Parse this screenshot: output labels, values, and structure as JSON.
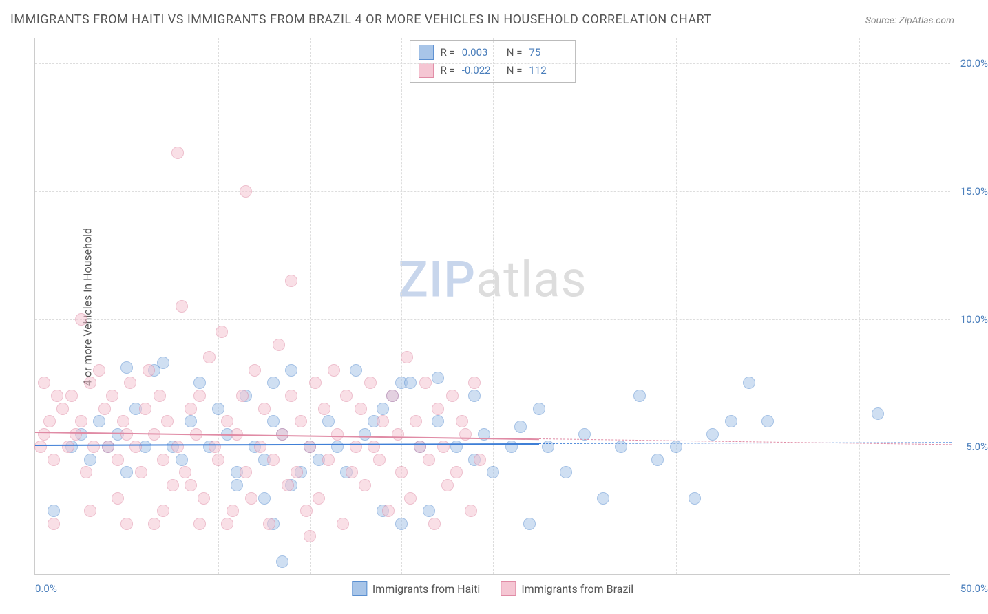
{
  "title": "IMMIGRANTS FROM HAITI VS IMMIGRANTS FROM BRAZIL 4 OR MORE VEHICLES IN HOUSEHOLD CORRELATION CHART",
  "source": "Source: ZipAtlas.com",
  "ylabel": "4 or more Vehicles in Household",
  "watermark_zip": "ZIP",
  "watermark_atlas": "atlas",
  "chart": {
    "type": "scatter",
    "xlim": [
      0,
      50
    ],
    "ylim": [
      0,
      21
    ],
    "yticks": [
      {
        "v": 5.0,
        "label": "5.0%"
      },
      {
        "v": 10.0,
        "label": "10.0%"
      },
      {
        "v": 15.0,
        "label": "15.0%"
      },
      {
        "v": 20.0,
        "label": "20.0%"
      }
    ],
    "xtick_left": "0.0%",
    "xtick_right": "50.0%",
    "vgrid_count": 10,
    "background_color": "#ffffff",
    "grid_color": "#dddddd",
    "label_color": "#4a7ebb",
    "point_radius": 9,
    "point_opacity": 0.55,
    "series": [
      {
        "name": "Immigrants from Haiti",
        "fill": "#a8c5e8",
        "stroke": "#5a8fd0",
        "trend_color": "#3f7fd6",
        "trend_y0": 5.1,
        "trend_y1": 5.2,
        "R_label": "R =",
        "R_value": "0.003",
        "N_label": "N =",
        "N_value": "75",
        "points": [
          [
            1.0,
            2.5
          ],
          [
            2.0,
            5.0
          ],
          [
            2.5,
            5.5
          ],
          [
            3.0,
            4.5
          ],
          [
            3.5,
            6.0
          ],
          [
            4.0,
            5.0
          ],
          [
            4.5,
            5.5
          ],
          [
            5.0,
            4.0
          ],
          [
            5.5,
            6.5
          ],
          [
            6.0,
            5.0
          ],
          [
            6.5,
            8.0
          ],
          [
            7.0,
            8.3
          ],
          [
            7.5,
            5.0
          ],
          [
            8.0,
            4.5
          ],
          [
            5.0,
            8.1
          ],
          [
            8.5,
            6.0
          ],
          [
            9.0,
            7.5
          ],
          [
            9.5,
            5.0
          ],
          [
            10.0,
            6.5
          ],
          [
            10.5,
            5.5
          ],
          [
            11.0,
            4.0
          ],
          [
            11.5,
            7.0
          ],
          [
            12.0,
            5.0
          ],
          [
            12.5,
            4.5
          ],
          [
            13.0,
            6.0
          ],
          [
            13.5,
            0.5
          ],
          [
            11.0,
            3.5
          ],
          [
            12.5,
            3.0
          ],
          [
            13.0,
            2.0
          ],
          [
            13.5,
            5.5
          ],
          [
            14.0,
            3.5
          ],
          [
            14.5,
            4.0
          ],
          [
            15.0,
            5.0
          ],
          [
            15.5,
            4.5
          ],
          [
            16.0,
            6.0
          ],
          [
            16.5,
            5.0
          ],
          [
            17.0,
            4.0
          ],
          [
            18.0,
            5.5
          ],
          [
            19.0,
            6.5
          ],
          [
            19.5,
            7.0
          ],
          [
            20.0,
            7.5
          ],
          [
            21.0,
            5.0
          ],
          [
            22.0,
            6.0
          ],
          [
            23.0,
            5.0
          ],
          [
            24.0,
            4.5
          ],
          [
            24.5,
            5.5
          ],
          [
            25.0,
            4.0
          ],
          [
            26.0,
            5.0
          ],
          [
            27.0,
            2.0
          ],
          [
            27.5,
            6.5
          ],
          [
            28.0,
            5.0
          ],
          [
            29.0,
            4.0
          ],
          [
            30.0,
            5.5
          ],
          [
            31.0,
            3.0
          ],
          [
            32.0,
            5.0
          ],
          [
            33.0,
            7.0
          ],
          [
            34.0,
            4.5
          ],
          [
            35.0,
            5.0
          ],
          [
            36.0,
            3.0
          ],
          [
            37.0,
            5.5
          ],
          [
            38.0,
            6.0
          ],
          [
            39.0,
            7.5
          ],
          [
            40.0,
            6.0
          ],
          [
            19.0,
            2.5
          ],
          [
            20.0,
            2.0
          ],
          [
            21.5,
            2.5
          ],
          [
            20.5,
            7.5
          ],
          [
            17.5,
            8.0
          ],
          [
            18.5,
            6.0
          ],
          [
            46.0,
            6.3
          ],
          [
            14.0,
            8.0
          ],
          [
            13.0,
            7.5
          ],
          [
            22.0,
            7.7
          ],
          [
            24.0,
            7.0
          ],
          [
            26.5,
            5.8
          ]
        ]
      },
      {
        "name": "Immigrants from Brazil",
        "fill": "#f5c6d3",
        "stroke": "#e08ba5",
        "trend_color": "#e08ba5",
        "trend_y0": 5.6,
        "trend_y1": 5.1,
        "R_label": "R =",
        "R_value": "-0.022",
        "N_label": "N =",
        "N_value": "112",
        "points": [
          [
            0.3,
            5.0
          ],
          [
            0.5,
            5.5
          ],
          [
            0.8,
            6.0
          ],
          [
            1.0,
            4.5
          ],
          [
            1.2,
            7.0
          ],
          [
            1.5,
            6.5
          ],
          [
            1.8,
            5.0
          ],
          [
            0.5,
            7.5
          ],
          [
            2.0,
            7.0
          ],
          [
            2.2,
            5.5
          ],
          [
            2.5,
            6.0
          ],
          [
            2.8,
            4.0
          ],
          [
            3.0,
            7.5
          ],
          [
            3.2,
            5.0
          ],
          [
            3.5,
            8.0
          ],
          [
            3.8,
            6.5
          ],
          [
            4.0,
            5.0
          ],
          [
            4.2,
            7.0
          ],
          [
            4.5,
            4.5
          ],
          [
            4.8,
            6.0
          ],
          [
            5.0,
            5.5
          ],
          [
            2.5,
            10.0
          ],
          [
            5.2,
            7.5
          ],
          [
            5.5,
            5.0
          ],
          [
            5.8,
            4.0
          ],
          [
            6.0,
            6.5
          ],
          [
            6.2,
            8.0
          ],
          [
            6.5,
            5.5
          ],
          [
            6.8,
            7.0
          ],
          [
            7.0,
            4.5
          ],
          [
            7.2,
            6.0
          ],
          [
            7.5,
            3.5
          ],
          [
            7.8,
            5.0
          ],
          [
            8.0,
            10.5
          ],
          [
            8.2,
            4.0
          ],
          [
            8.5,
            6.5
          ],
          [
            8.8,
            5.5
          ],
          [
            9.0,
            7.0
          ],
          [
            9.2,
            3.0
          ],
          [
            9.5,
            8.5
          ],
          [
            9.8,
            5.0
          ],
          [
            10.0,
            4.5
          ],
          [
            7.8,
            16.5
          ],
          [
            10.2,
            9.5
          ],
          [
            10.5,
            6.0
          ],
          [
            10.8,
            2.5
          ],
          [
            11.0,
            5.5
          ],
          [
            11.3,
            7.0
          ],
          [
            11.5,
            4.0
          ],
          [
            11.8,
            3.0
          ],
          [
            12.0,
            8.0
          ],
          [
            12.3,
            5.0
          ],
          [
            12.5,
            6.5
          ],
          [
            12.8,
            2.0
          ],
          [
            13.0,
            4.5
          ],
          [
            13.3,
            9.0
          ],
          [
            11.5,
            15.0
          ],
          [
            13.5,
            5.5
          ],
          [
            13.8,
            3.5
          ],
          [
            14.0,
            7.0
          ],
          [
            14.3,
            4.0
          ],
          [
            14.5,
            6.0
          ],
          [
            14.8,
            2.5
          ],
          [
            15.0,
            5.0
          ],
          [
            15.3,
            7.5
          ],
          [
            15.5,
            3.0
          ],
          [
            15.8,
            6.5
          ],
          [
            16.0,
            4.5
          ],
          [
            16.3,
            8.0
          ],
          [
            16.5,
            5.5
          ],
          [
            14.0,
            11.5
          ],
          [
            16.8,
            2.0
          ],
          [
            17.0,
            7.0
          ],
          [
            17.3,
            4.0
          ],
          [
            17.5,
            5.0
          ],
          [
            17.8,
            6.5
          ],
          [
            18.0,
            3.5
          ],
          [
            18.3,
            7.5
          ],
          [
            18.5,
            5.0
          ],
          [
            18.8,
            4.5
          ],
          [
            19.0,
            6.0
          ],
          [
            19.3,
            2.5
          ],
          [
            19.5,
            7.0
          ],
          [
            19.8,
            5.5
          ],
          [
            20.0,
            4.0
          ],
          [
            20.3,
            8.5
          ],
          [
            20.5,
            3.0
          ],
          [
            20.8,
            6.0
          ],
          [
            21.0,
            5.0
          ],
          [
            21.3,
            7.5
          ],
          [
            21.5,
            4.5
          ],
          [
            21.8,
            2.0
          ],
          [
            22.0,
            6.5
          ],
          [
            22.3,
            5.0
          ],
          [
            22.5,
            3.5
          ],
          [
            22.8,
            7.0
          ],
          [
            23.0,
            4.0
          ],
          [
            23.3,
            6.0
          ],
          [
            23.5,
            5.5
          ],
          [
            23.8,
            2.5
          ],
          [
            24.0,
            7.5
          ],
          [
            24.3,
            4.5
          ],
          [
            1.0,
            2.0
          ],
          [
            3.0,
            2.5
          ],
          [
            5.0,
            2.0
          ],
          [
            7.0,
            2.5
          ],
          [
            9.0,
            2.0
          ],
          [
            15.0,
            1.5
          ],
          [
            4.5,
            3.0
          ],
          [
            6.5,
            2.0
          ],
          [
            8.5,
            3.5
          ],
          [
            10.5,
            2.0
          ]
        ]
      }
    ]
  }
}
